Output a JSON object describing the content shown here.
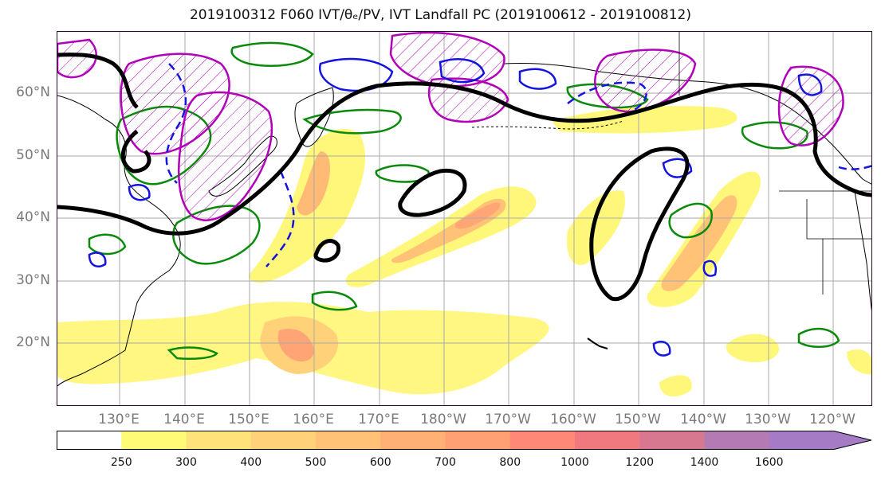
{
  "title": "2019100312 F060 IVT/θₑ/PV, IVT Landfall PC (2019100612 - 2019100812)",
  "lat_labels": [
    "60°N",
    "50°N",
    "40°N",
    "30°N",
    "20°N"
  ],
  "lon_labels": [
    "130°E",
    "140°E",
    "150°E",
    "160°E",
    "170°E",
    "180°W",
    "170°W",
    "160°W",
    "150°W",
    "140°W",
    "130°W",
    "120°W"
  ],
  "colorbar": {
    "levels": [
      "250",
      "300",
      "400",
      "500",
      "600",
      "700",
      "800",
      "1000",
      "1200",
      "1400",
      "1600"
    ],
    "colors": [
      "#ffffff",
      "#fffb77",
      "#ffe27a",
      "#ffd27a",
      "#ffc276",
      "#ffb075",
      "#ff9f74",
      "#ff8876",
      "#f0787f",
      "#d87890",
      "#b37ab3",
      "#a47bc4"
    ]
  },
  "legend_colors": {
    "ivt_pc_contour": "#000000",
    "theta_e": "#0a8a0a",
    "pv_positive": "#b000b8",
    "pv_negative": "#1414e0"
  }
}
